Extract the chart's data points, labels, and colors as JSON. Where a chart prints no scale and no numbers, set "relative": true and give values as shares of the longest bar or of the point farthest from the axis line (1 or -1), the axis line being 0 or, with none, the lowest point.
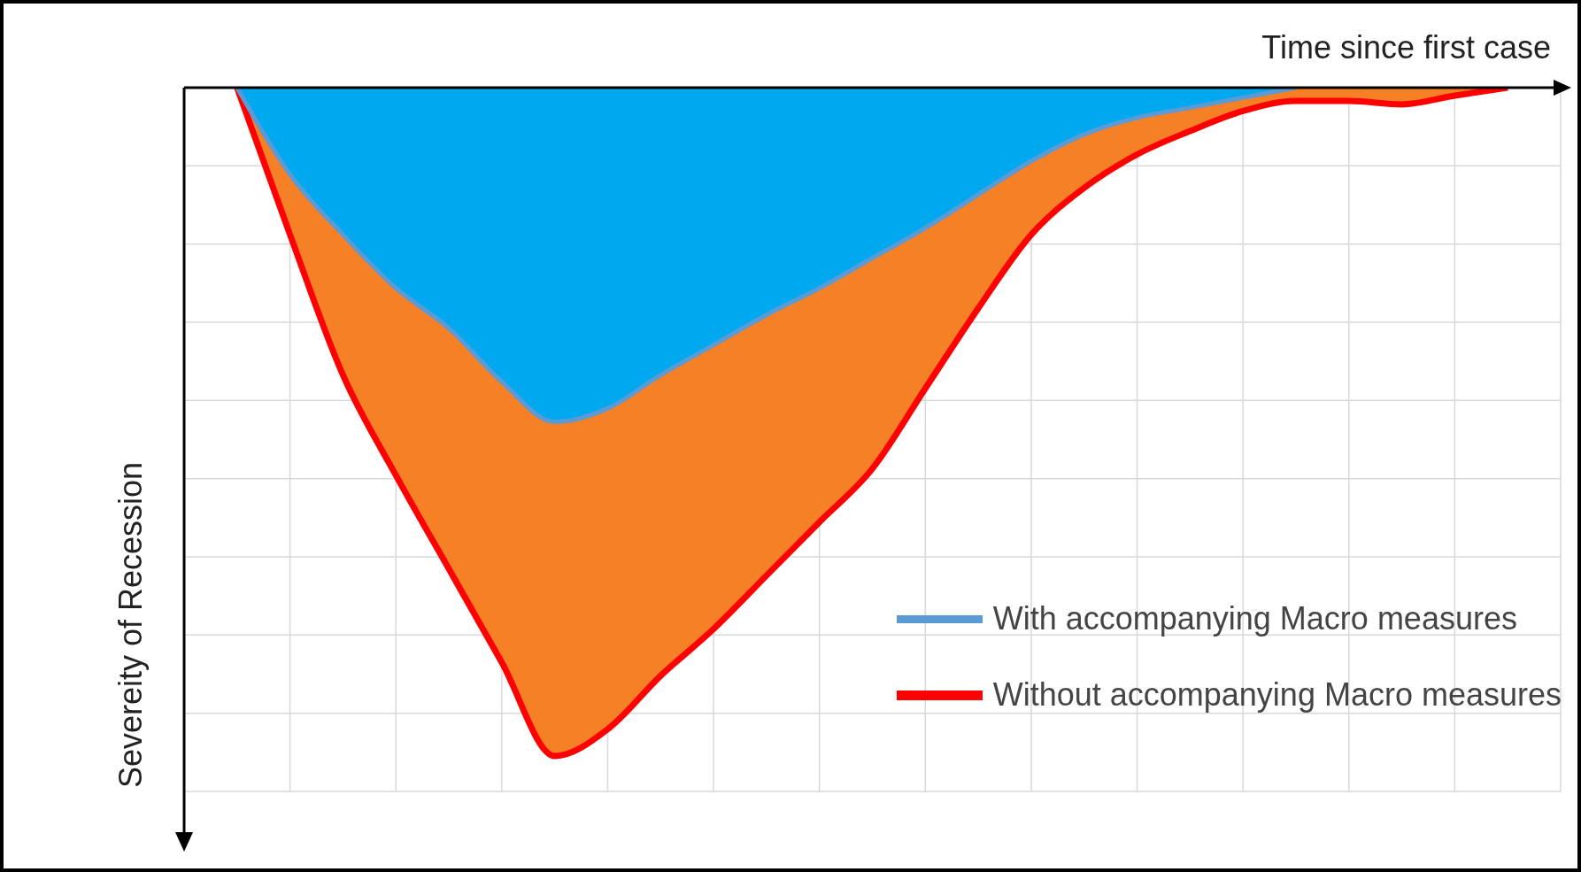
{
  "chart_data": {
    "type": "area",
    "relative": true,
    "xlabel": "Time since first case",
    "ylabel": "Severeity of Recession",
    "grid": true,
    "legend": "bottom right",
    "categories": [
      null,
      null,
      null,
      null,
      null,
      null,
      null,
      null,
      null,
      null,
      null,
      null,
      null,
      null,
      null,
      null,
      null,
      null,
      null,
      null,
      null,
      null,
      null,
      null,
      null,
      null
    ],
    "series": [
      {
        "name": "Without accompanying Macro measures",
        "color": "#ff0000",
        "values": [
          null,
          0,
          -0.22,
          -0.43,
          -0.58,
          -0.72,
          -0.86,
          -1,
          -0.96,
          -0.88,
          -0.81,
          -0.73,
          -0.65,
          -0.57,
          -0.45,
          -0.33,
          -0.22,
          -0.15,
          -0.1,
          -0.065,
          -0.035,
          -0.02,
          -0.02,
          -0.025,
          -0.012,
          0
        ]
      },
      {
        "name": "With accompanying Macro measures",
        "color": "#5b9bd5",
        "values": [
          null,
          0,
          -0.13,
          -0.22,
          -0.3,
          -0.36,
          -0.44,
          -0.5,
          -0.48,
          -0.43,
          -0.385,
          -0.34,
          -0.3,
          -0.255,
          -0.21,
          -0.16,
          -0.11,
          -0.07,
          -0.045,
          -0.03,
          -0.015,
          0,
          null,
          null,
          null,
          null
        ]
      }
    ]
  }
}
